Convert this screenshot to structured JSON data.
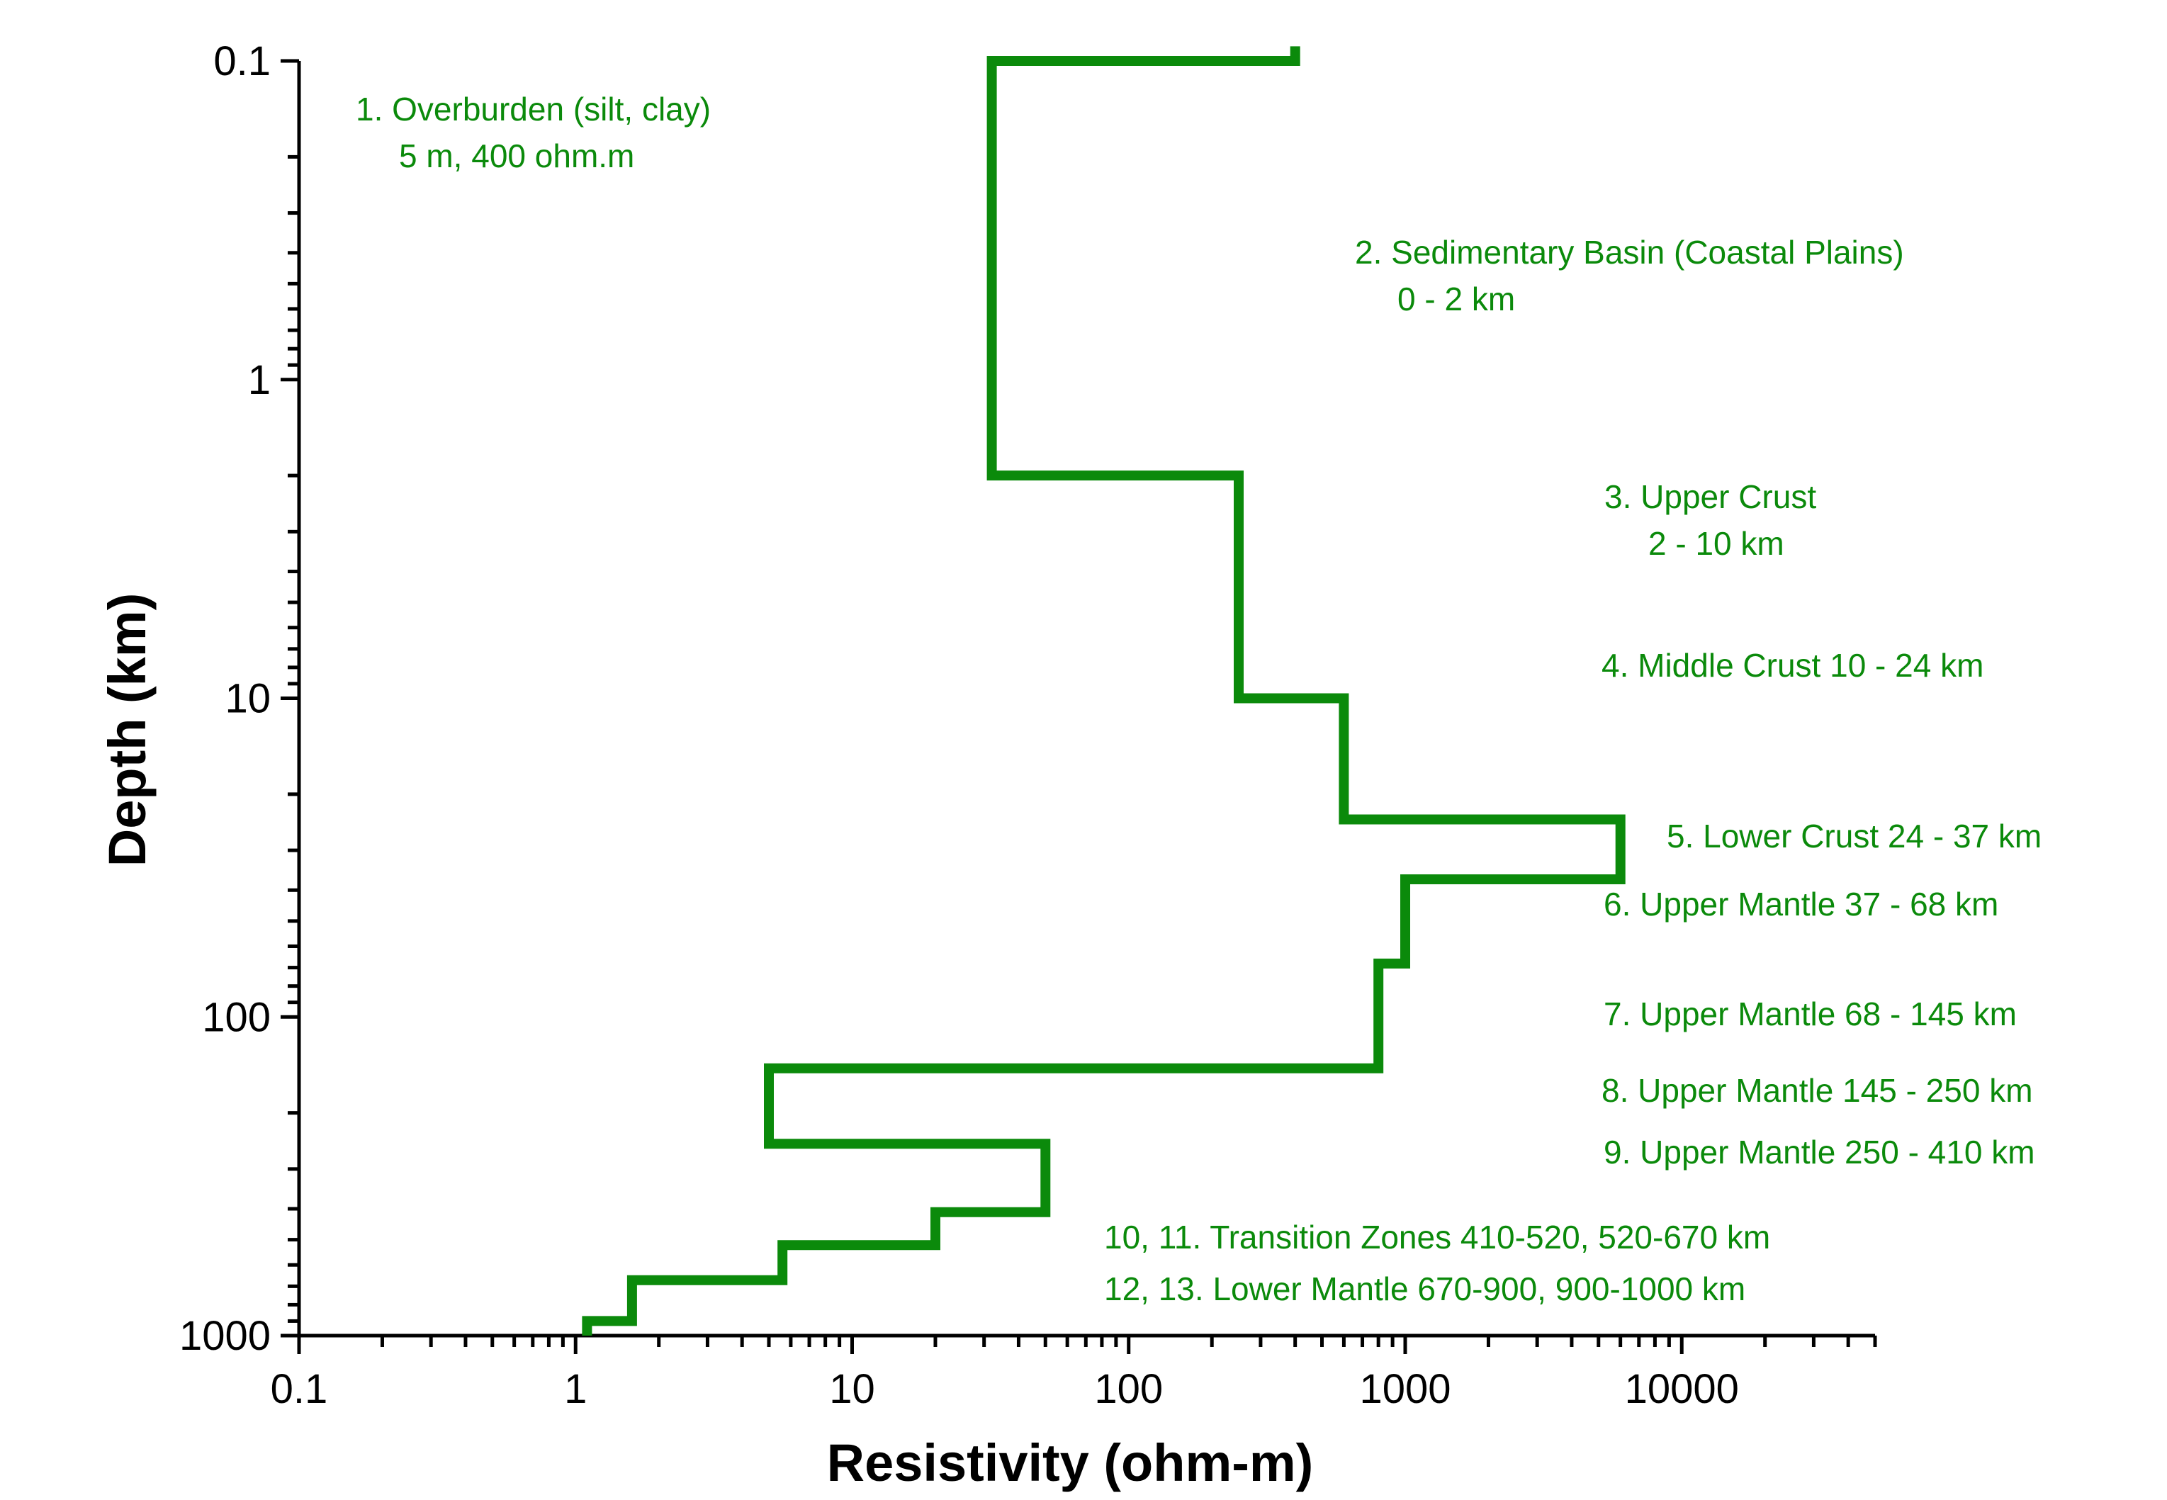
{
  "chart_data": {
    "type": "line",
    "title": "",
    "xlabel": "Resistivity (ohm-m)",
    "ylabel": "Depth (km)",
    "x_scale": "log",
    "y_scale": "log",
    "y_inverted": true,
    "xlim": [
      0.1,
      50000
    ],
    "ylim": [
      0.1,
      1000
    ],
    "x_tick_labels": [
      "0.1",
      "1",
      "10",
      "100",
      "1000",
      "10000"
    ],
    "y_tick_labels": [
      "0.1",
      "1",
      "10",
      "100",
      "1000"
    ],
    "grid": false,
    "line_color": "#0b8a0b",
    "series": [
      {
        "x": [
          400,
          400,
          32,
          32,
          250,
          250,
          600,
          600,
          6000,
          6000,
          1000,
          1000,
          800,
          800,
          5,
          5,
          50,
          50,
          20,
          20,
          5.6,
          5.6,
          1.6,
          1.6,
          1.1,
          1.1
        ],
        "y": [
          0.09,
          0.1,
          0.1,
          2,
          2,
          10,
          10,
          24,
          24,
          37,
          37,
          68,
          68,
          145,
          145,
          250,
          250,
          410,
          410,
          520,
          520,
          670,
          670,
          900,
          900,
          1000
        ]
      }
    ],
    "annotations": [
      [
        "1. Overburden (silt, clay)",
        "5 m, 400 ohm.m"
      ],
      [
        "2. Sedimentary Basin (Coastal Plains)",
        "0 - 2 km"
      ],
      [
        "3. Upper Crust",
        "2 - 10 km"
      ],
      [
        "4. Middle Crust 10 - 24 km"
      ],
      [
        "5. Lower Crust 24 - 37 km"
      ],
      [
        "6. Upper Mantle 37 - 68 km"
      ],
      [
        "7. Upper Mantle 68 - 145 km"
      ],
      [
        "8. Upper Mantle 145 - 250 km"
      ],
      [
        "9. Upper Mantle  250 - 410 km"
      ],
      [
        "10, 11. Transition Zones 410-520, 520-670 km"
      ],
      [
        "12, 13. Lower Mantle 670-900, 900-1000 km"
      ]
    ]
  }
}
